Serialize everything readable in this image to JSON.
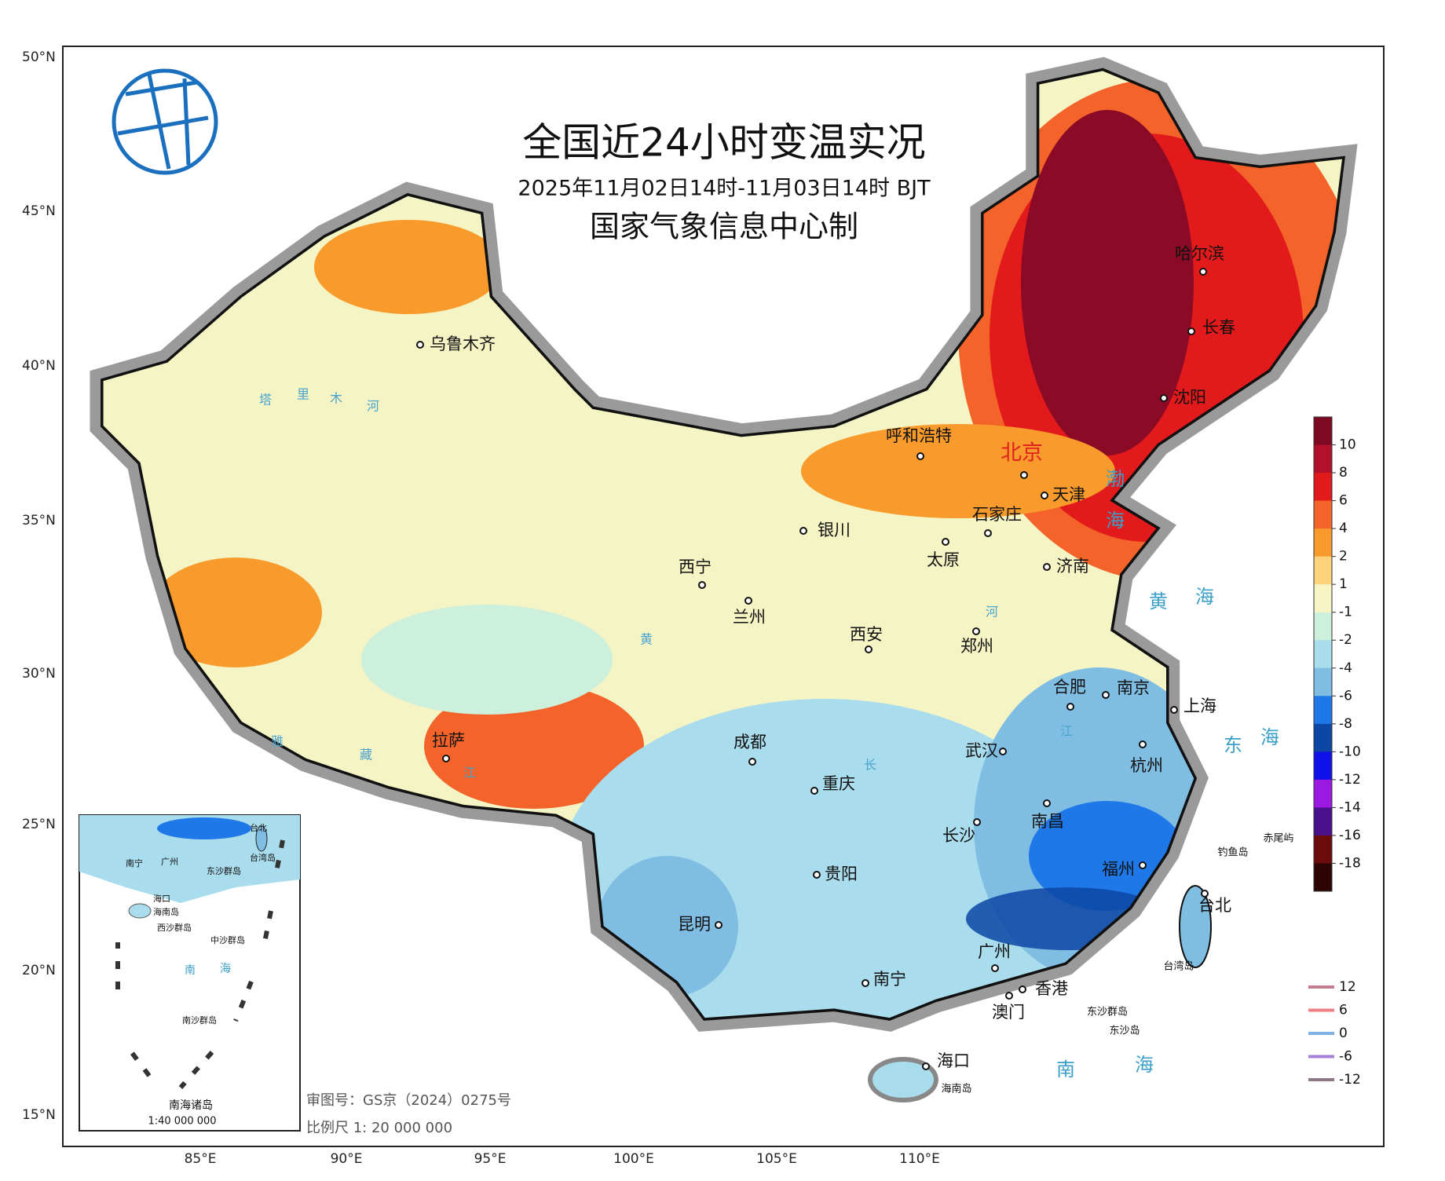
{
  "header": {
    "title": "全国近24小时变温实况",
    "subtitle": "2025年11月02日14时-11月03日14时 BJT",
    "producer": "国家气象信息中心制"
  },
  "axes": {
    "latitude": [
      "50°N",
      "45°N",
      "40°N",
      "35°N",
      "30°N",
      "25°N",
      "20°N",
      "15°N"
    ],
    "longitude": [
      "85°E",
      "90°E",
      "95°E",
      "100°E",
      "105°E",
      "110°E"
    ]
  },
  "cities": [
    "乌鲁木齐",
    "呼和浩特",
    "北京",
    "天津",
    "石家庄",
    "太原",
    "济南",
    "银川",
    "西宁",
    "兰州",
    "西安",
    "郑州",
    "合肥",
    "南京",
    "上海",
    "杭州",
    "武汉",
    "成都",
    "重庆",
    "拉萨",
    "长沙",
    "南昌",
    "福州",
    "贵阳",
    "昆明",
    "南宁",
    "广州",
    "香港",
    "澳门",
    "台北",
    "海口",
    "哈尔滨",
    "长春",
    "沈阳"
  ],
  "seas": [
    "渤",
    "海",
    "黄",
    "海",
    "东",
    "海",
    "南",
    "海"
  ],
  "rivers": [
    "塔",
    "里",
    "木",
    "河",
    "黄",
    "河",
    "长",
    "江",
    "雅",
    "藏",
    "江"
  ],
  "islands": [
    "钓鱼岛",
    "赤尾屿",
    "台湾岛",
    "东沙群岛",
    "东沙岛",
    "海南岛"
  ],
  "inset": {
    "title": "南海诸岛",
    "scale": "1:40 000 000",
    "labels": [
      "南宁",
      "广州",
      "海口",
      "海南岛",
      "台北",
      "台湾岛",
      "东沙群岛",
      "西沙群岛",
      "中沙群岛",
      "南",
      "海",
      "南沙群岛"
    ]
  },
  "footer": {
    "review": "审图号：GS京（2024）0275号",
    "scale": "比例尺 1: 20 000 000"
  },
  "legend": {
    "shading": {
      "colors": [
        "#7d0a22",
        "#b3112b",
        "#e31a1c",
        "#f4632a",
        "#f99a2c",
        "#fcd27b",
        "#f7f5c4",
        "#cdf0dc",
        "#a9dcec",
        "#80bde3",
        "#1f78e8",
        "#0c47a5",
        "#1010e8",
        "#9b19e0",
        "#4a0f8a",
        "#6b0b0b",
        "#2d0303"
      ],
      "values": [
        10,
        8,
        6,
        4,
        2,
        1,
        -1,
        -2,
        -4,
        -6,
        -8,
        -10,
        -12,
        -14,
        -16,
        -18
      ]
    },
    "isolines": [
      {
        "value": 12,
        "color": "#c77b8e"
      },
      {
        "value": 6,
        "color": "#ee7f84"
      },
      {
        "value": 0,
        "color": "#7fb0e6"
      },
      {
        "value": -6,
        "color": "#a681d8"
      },
      {
        "value": -12,
        "color": "#8b7a86"
      }
    ]
  }
}
